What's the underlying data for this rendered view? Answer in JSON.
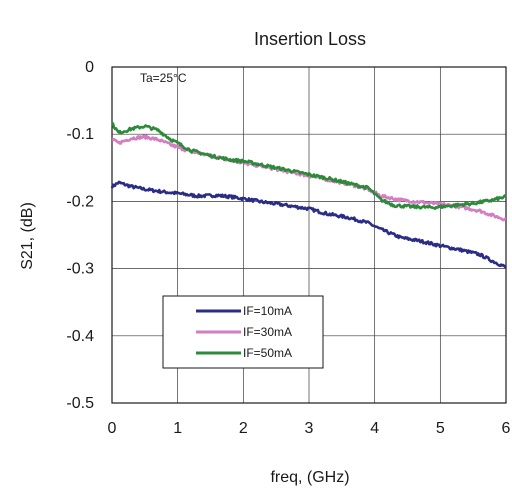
{
  "chart_data": {
    "type": "line",
    "title": "Insertion Loss",
    "xlabel": "freq, (GHz)",
    "ylabel": "S21, (dB)",
    "annotation": "Ta=25°C",
    "xlim": [
      0,
      6
    ],
    "ylim": [
      -0.5,
      0
    ],
    "x_ticks": [
      0,
      1,
      2,
      3,
      4,
      5,
      6
    ],
    "x_tick_labels": [
      "0",
      "1",
      "2",
      "3",
      "4",
      "5",
      "6"
    ],
    "y_ticks": [
      0,
      -0.1,
      -0.2,
      -0.3,
      -0.4,
      -0.5
    ],
    "y_tick_labels": [
      "0",
      "-0.1",
      "-0.2",
      "-0.3",
      "-0.4",
      "-0.5"
    ],
    "grid": true,
    "legend_position": "lower-left",
    "series": [
      {
        "name": "IF=10mA",
        "color": "#2b2c86",
        "x": [
          0,
          0.1,
          0.3,
          0.5,
          0.8,
          1.0,
          1.3,
          1.6,
          1.8,
          2.0,
          2.3,
          2.6,
          3.0,
          3.3,
          3.6,
          3.9,
          4.1,
          4.4,
          4.7,
          5.0,
          5.3,
          5.6,
          5.8,
          6.0
        ],
        "y": [
          -0.178,
          -0.172,
          -0.178,
          -0.182,
          -0.186,
          -0.188,
          -0.192,
          -0.191,
          -0.193,
          -0.196,
          -0.201,
          -0.205,
          -0.211,
          -0.219,
          -0.224,
          -0.232,
          -0.242,
          -0.254,
          -0.259,
          -0.266,
          -0.272,
          -0.279,
          -0.289,
          -0.298
        ]
      },
      {
        "name": "IF=30mA",
        "color": "#d27ec1",
        "x": [
          0,
          0.1,
          0.3,
          0.5,
          0.7,
          0.9,
          1.2,
          1.5,
          1.8,
          2.0,
          2.3,
          2.6,
          3.0,
          3.3,
          3.6,
          3.9,
          4.1,
          4.4,
          4.7,
          5.0,
          5.3,
          5.6,
          5.8,
          6.0
        ],
        "y": [
          -0.108,
          -0.113,
          -0.106,
          -0.104,
          -0.108,
          -0.116,
          -0.126,
          -0.132,
          -0.138,
          -0.143,
          -0.148,
          -0.154,
          -0.162,
          -0.168,
          -0.174,
          -0.182,
          -0.192,
          -0.198,
          -0.201,
          -0.204,
          -0.208,
          -0.214,
          -0.221,
          -0.227
        ]
      },
      {
        "name": "IF=50mA",
        "color": "#2d8a3a",
        "x": [
          0,
          0.1,
          0.3,
          0.5,
          0.7,
          0.9,
          1.2,
          1.5,
          1.8,
          2.0,
          2.3,
          2.6,
          3.0,
          3.3,
          3.6,
          3.9,
          4.1,
          4.3,
          4.6,
          4.9,
          5.2,
          5.5,
          5.8,
          6.0
        ],
        "y": [
          -0.084,
          -0.098,
          -0.092,
          -0.088,
          -0.094,
          -0.108,
          -0.124,
          -0.132,
          -0.138,
          -0.14,
          -0.146,
          -0.152,
          -0.16,
          -0.166,
          -0.173,
          -0.18,
          -0.198,
          -0.206,
          -0.208,
          -0.209,
          -0.206,
          -0.203,
          -0.198,
          -0.193
        ]
      }
    ]
  }
}
